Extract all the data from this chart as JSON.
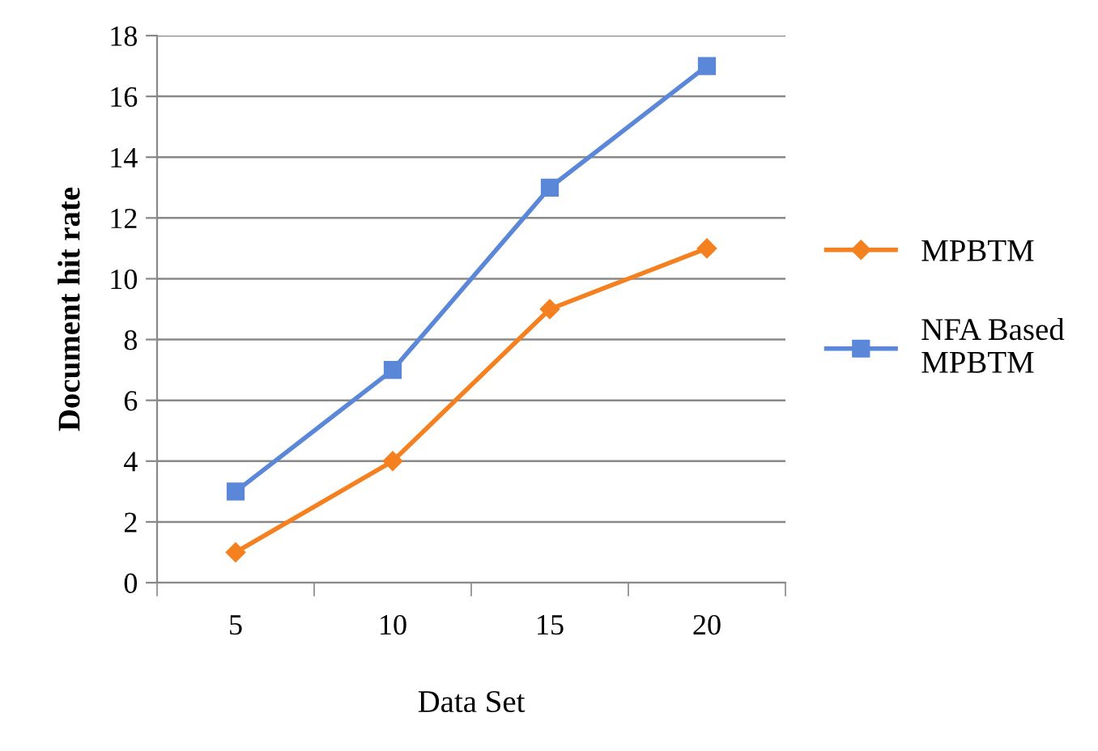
{
  "chart_data": {
    "type": "line",
    "xlabel": "Data Set",
    "ylabel": "Document hit rate",
    "categories": [
      "5",
      "10",
      "15",
      "20"
    ],
    "series": [
      {
        "name": "MPBTM",
        "color": "#f5801f",
        "marker": "diamond",
        "values": [
          1,
          4,
          9,
          11
        ]
      },
      {
        "name": "NFA Based\nMPBTM",
        "color": "#5b87d8",
        "marker": "square",
        "values": [
          3,
          7,
          13,
          17
        ]
      }
    ],
    "ylim": [
      0,
      18
    ],
    "yticks": [
      0,
      2,
      4,
      6,
      8,
      10,
      12,
      14,
      16,
      18
    ],
    "grid": "y",
    "legend": "right",
    "line_style": "solid"
  }
}
